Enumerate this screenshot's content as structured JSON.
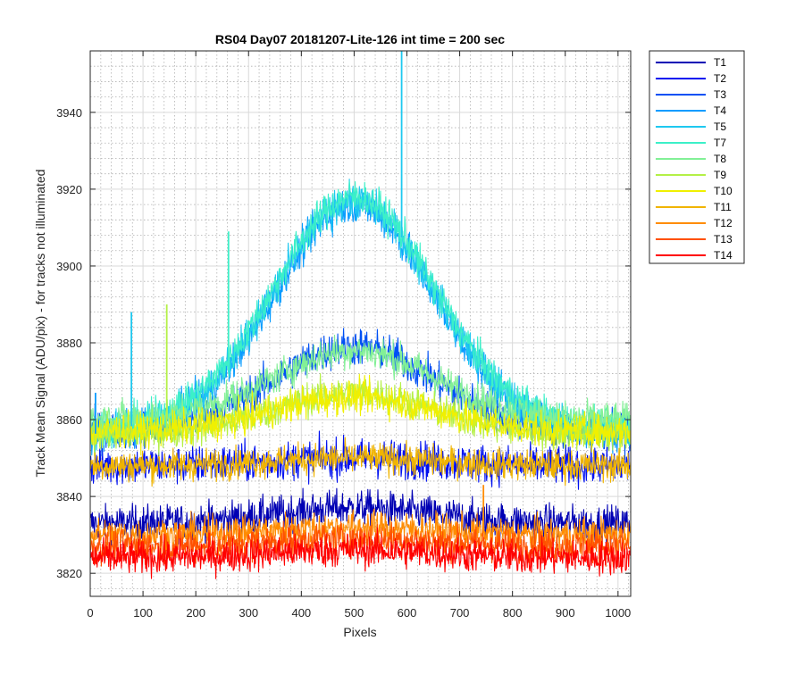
{
  "chart_data": {
    "type": "line",
    "title": "RS04 Day07 20181207-Lite-126 int time = 200 sec",
    "xlabel": "Pixels",
    "ylabel": "Track Mean Signal (ADU/pix) - for tracks not illuminated",
    "xlim": [
      0,
      1024
    ],
    "ylim": [
      3814,
      3956
    ],
    "xticks": [
      0,
      100,
      200,
      300,
      400,
      500,
      600,
      700,
      800,
      900,
      1000
    ],
    "yticks": [
      3820,
      3840,
      3860,
      3880,
      3900,
      3920,
      3940
    ],
    "grid": "major solid, minor dotted",
    "legend_position": "outside top-right",
    "series": [
      {
        "name": "T1",
        "color": "#0000b4",
        "base": 3833,
        "peak": 4,
        "noise": 2.3,
        "sample": [
          [
            0,
            3830
          ],
          [
            250,
            3832
          ],
          [
            500,
            3836
          ],
          [
            750,
            3833
          ],
          [
            1024,
            3833
          ]
        ]
      },
      {
        "name": "T2",
        "color": "#0010f0",
        "base": 3848,
        "peak": 2,
        "noise": 2.5,
        "sample": [
          [
            0,
            3847
          ],
          [
            250,
            3848
          ],
          [
            500,
            3850
          ],
          [
            750,
            3848
          ],
          [
            1024,
            3847
          ]
        ]
      },
      {
        "name": "T3",
        "color": "#0050f4",
        "base": 3857,
        "peak": 22,
        "noise": 2.5,
        "sample": [
          [
            0,
            3857
          ],
          [
            250,
            3866
          ],
          [
            500,
            3878
          ],
          [
            750,
            3870
          ],
          [
            1024,
            3858
          ]
        ]
      },
      {
        "name": "T4",
        "color": "#0a9cff",
        "base": 3856,
        "peak": 60,
        "noise": 2.4,
        "sample": [
          [
            0,
            3856
          ],
          [
            250,
            3881
          ],
          [
            500,
            3916
          ],
          [
            750,
            3888
          ],
          [
            1024,
            3859
          ]
        ]
      },
      {
        "name": "T5",
        "color": "#1ec8f0",
        "base": 3857,
        "peak": 60,
        "noise": 2.3,
        "sample": [
          [
            0,
            3857
          ],
          [
            250,
            3881
          ],
          [
            500,
            3916
          ],
          [
            750,
            3888
          ],
          [
            1024,
            3860
          ]
        ]
      },
      {
        "name": "T7",
        "color": "#3cf0c8",
        "base": 3858,
        "peak": 60,
        "noise": 2.3,
        "sample": [
          [
            0,
            3858
          ],
          [
            250,
            3882
          ],
          [
            500,
            3917
          ],
          [
            750,
            3889
          ],
          [
            1024,
            3861
          ]
        ]
      },
      {
        "name": "T8",
        "color": "#82f096",
        "base": 3860,
        "peak": 18,
        "noise": 2.2,
        "sample": [
          [
            0,
            3860
          ],
          [
            250,
            3868
          ],
          [
            500,
            3878
          ],
          [
            750,
            3872
          ],
          [
            1024,
            3862
          ]
        ]
      },
      {
        "name": "T9",
        "color": "#b4f046",
        "base": 3856,
        "peak": 11,
        "noise": 2.2,
        "sample": [
          [
            0,
            3856
          ],
          [
            250,
            3861
          ],
          [
            500,
            3867
          ],
          [
            750,
            3863
          ],
          [
            1024,
            3858
          ]
        ]
      },
      {
        "name": "T10",
        "color": "#f0f000",
        "base": 3857,
        "peak": 9,
        "noise": 2.2,
        "sample": [
          [
            0,
            3857
          ],
          [
            250,
            3861
          ],
          [
            500,
            3866
          ],
          [
            750,
            3862
          ],
          [
            1024,
            3858
          ]
        ]
      },
      {
        "name": "T11",
        "color": "#f0b400",
        "base": 3848,
        "peak": 2,
        "noise": 2.0,
        "sample": [
          [
            0,
            3848
          ],
          [
            250,
            3849
          ],
          [
            500,
            3850
          ],
          [
            750,
            3849
          ],
          [
            1024,
            3848
          ]
        ]
      },
      {
        "name": "T12",
        "color": "#ff8c00",
        "base": 3830,
        "peak": 2,
        "noise": 2.2,
        "sample": [
          [
            0,
            3830
          ],
          [
            250,
            3831
          ],
          [
            500,
            3832
          ],
          [
            750,
            3831
          ],
          [
            1024,
            3830
          ]
        ]
      },
      {
        "name": "T13",
        "color": "#ff5000",
        "base": 3827,
        "peak": 2,
        "noise": 2.2,
        "sample": [
          [
            0,
            3827
          ],
          [
            250,
            3828
          ],
          [
            500,
            3829
          ],
          [
            750,
            3828
          ],
          [
            1024,
            3827
          ]
        ]
      },
      {
        "name": "T14",
        "color": "#ff0000",
        "base": 3824,
        "peak": 2,
        "noise": 2.2,
        "sample": [
          [
            0,
            3824
          ],
          [
            250,
            3825
          ],
          [
            500,
            3826
          ],
          [
            750,
            3825
          ],
          [
            1024,
            3823
          ]
        ]
      }
    ],
    "spikes": [
      {
        "series": "T5",
        "x": 590,
        "y": 3956
      },
      {
        "series": "T5",
        "x": 78,
        "y": 3888
      },
      {
        "series": "T4",
        "x": 10,
        "y": 3867
      },
      {
        "series": "T7",
        "x": 262,
        "y": 3909
      },
      {
        "series": "T9",
        "x": 145,
        "y": 3890
      },
      {
        "series": "T12",
        "x": 745,
        "y": 3843
      }
    ]
  }
}
